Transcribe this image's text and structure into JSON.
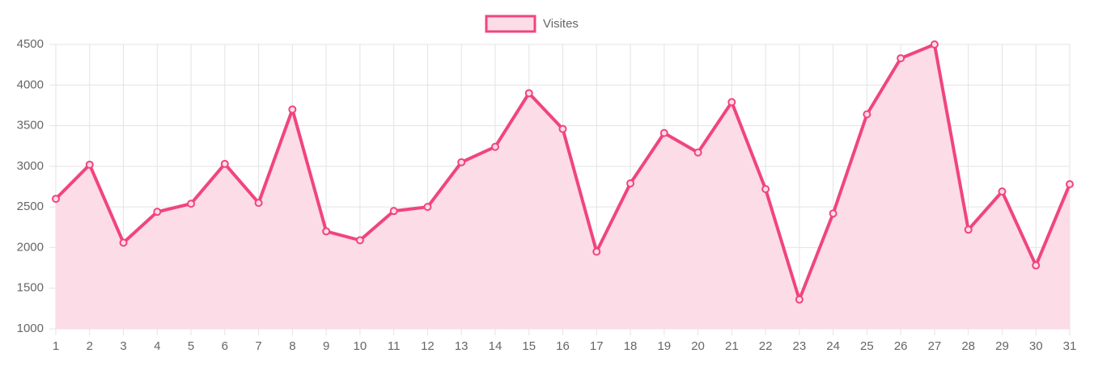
{
  "chart_data": {
    "type": "line",
    "categories": [
      "1",
      "2",
      "3",
      "4",
      "5",
      "6",
      "7",
      "8",
      "9",
      "10",
      "11",
      "12",
      "13",
      "14",
      "15",
      "16",
      "17",
      "18",
      "19",
      "20",
      "21",
      "22",
      "23",
      "24",
      "25",
      "26",
      "27",
      "28",
      "29",
      "30",
      "31"
    ],
    "series": [
      {
        "name": "Visites",
        "color": "#f0457f",
        "fill": "#fcdce7",
        "values": [
          2600,
          3020,
          2060,
          2440,
          2540,
          3030,
          2550,
          3700,
          2200,
          2090,
          2450,
          2500,
          3050,
          3240,
          3900,
          3460,
          1950,
          2790,
          3410,
          3170,
          3790,
          2720,
          1360,
          2420,
          3640,
          4330,
          4500,
          2220,
          2690,
          1780,
          2780
        ]
      }
    ],
    "ylim": [
      1000,
      4500
    ],
    "yticks": [
      1000,
      1500,
      2000,
      2500,
      3000,
      3500,
      4000,
      4500
    ],
    "grid": true,
    "legend": "top"
  }
}
